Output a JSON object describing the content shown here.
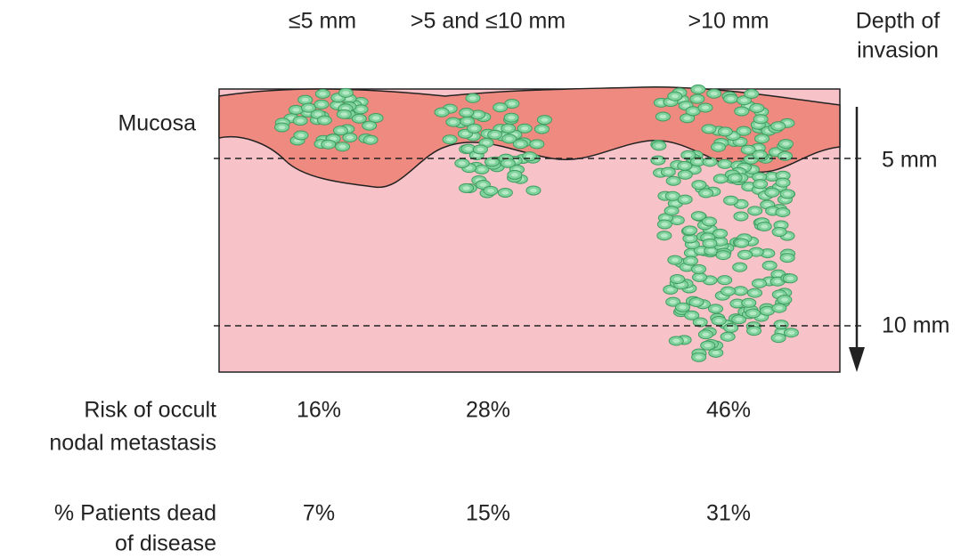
{
  "columns": [
    "≤5 mm",
    ">5 and ≤10 mm",
    ">10 mm"
  ],
  "depth_axis": {
    "title": [
      "Depth of",
      "invasion"
    ],
    "marks": [
      "5 mm",
      "10 mm"
    ]
  },
  "layer_label": "Mucosa",
  "rows": [
    {
      "label": [
        "Risk of occult",
        "nodal metastasis"
      ],
      "values": [
        "16%",
        "28%",
        "46%"
      ]
    },
    {
      "label": [
        "% Patients dead",
        "of disease"
      ],
      "values": [
        "7%",
        "15%",
        "31%"
      ]
    }
  ]
}
